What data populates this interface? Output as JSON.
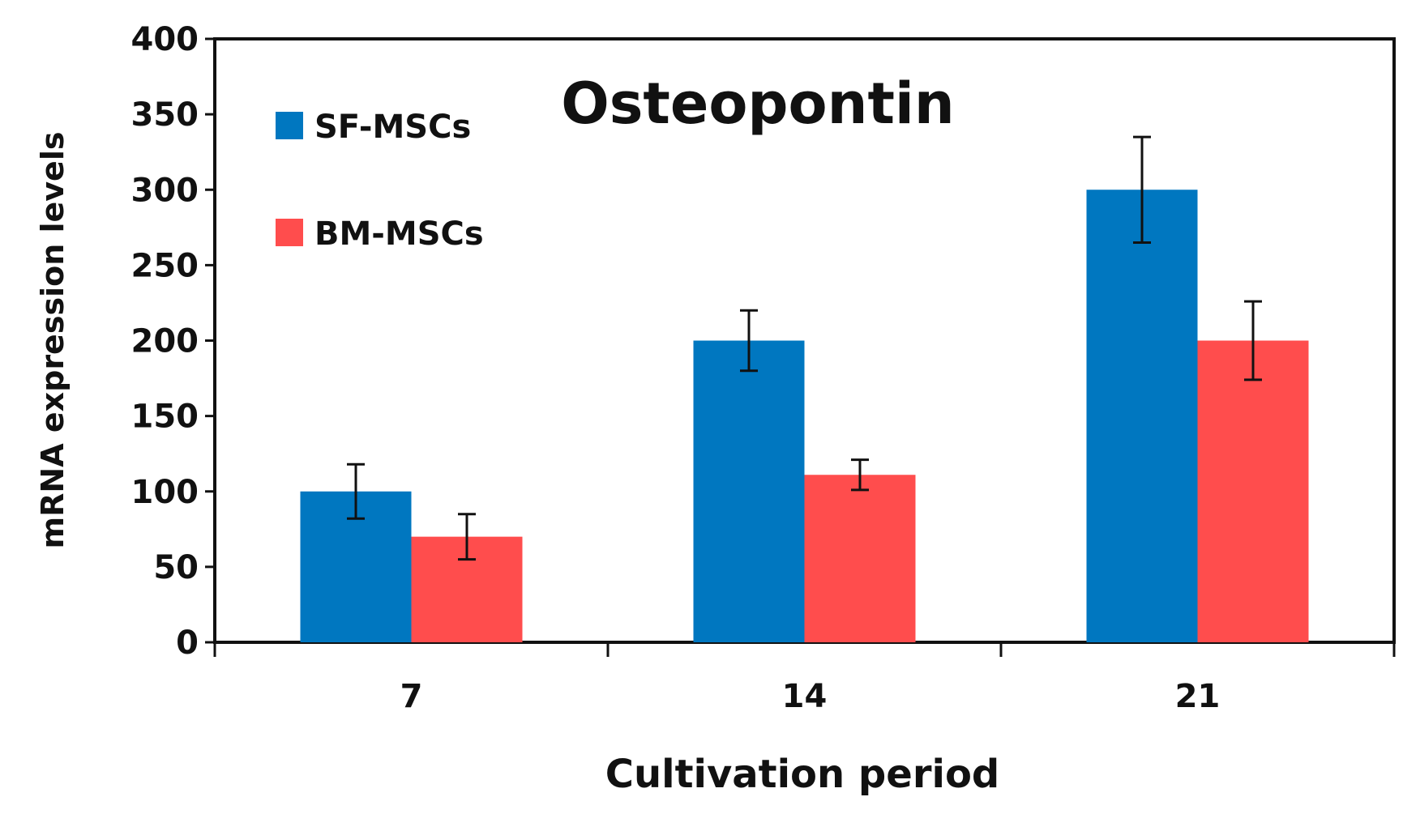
{
  "chart_data": {
    "type": "bar",
    "title": "Osteopontin",
    "xlabel": "Cultivation period",
    "ylabel": "mRNA expression levels",
    "categories": [
      "7",
      "14",
      "21"
    ],
    "ylim": [
      0,
      400
    ],
    "yticks": [
      "0",
      "50",
      "100",
      "150",
      "200",
      "250",
      "300",
      "350",
      "400"
    ],
    "grid": false,
    "legend_position": "top-left",
    "series": [
      {
        "name": "SF-MSCs",
        "color": "#0077c0",
        "values": [
          100,
          200,
          300
        ],
        "errors": [
          18,
          20,
          35
        ]
      },
      {
        "name": "BM-MSCs",
        "color": "#ff4d4d",
        "values": [
          70,
          111,
          200
        ],
        "errors": [
          15,
          10,
          26
        ]
      }
    ]
  }
}
